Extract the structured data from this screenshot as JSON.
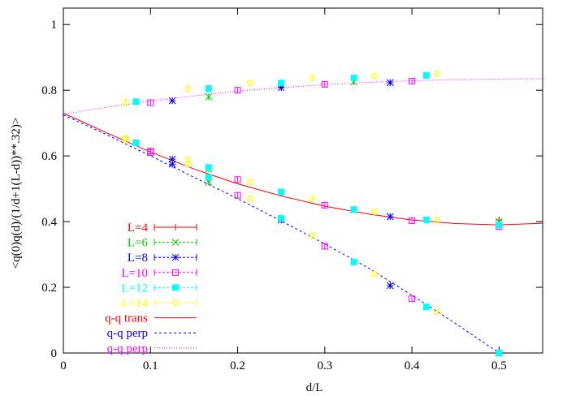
{
  "chart_data": {
    "type": "scatter",
    "xlabel": "d/L",
    "ylabel": "<q(0)q(d)/(1/d+1(L-d))**.32)>",
    "xlim": [
      0,
      0.55
    ],
    "ylim": [
      0,
      1.05
    ],
    "x_ticks": [
      "0",
      "0.1",
      "0.2",
      "0.3",
      "0.4",
      "0.5"
    ],
    "y_ticks": [
      "0",
      "0.2",
      "0.4",
      "0.6",
      "0.8",
      "1"
    ],
    "x_tick_values": [
      0,
      0.1,
      0.2,
      0.3,
      0.4,
      0.5
    ],
    "y_tick_values": [
      0,
      0.2,
      0.4,
      0.6,
      0.8,
      1.0
    ],
    "grid": false,
    "legend_position": "bottom-left",
    "series": [
      {
        "name": "L=4",
        "color": "#ff0000",
        "marker": "plus",
        "x": [
          0.25,
          0.25,
          0.5,
          0.5
        ],
        "y": [
          0.81,
          0.405,
          0.405,
          0.0
        ]
      },
      {
        "name": "L=6",
        "color": "#00cc00",
        "marker": "cross",
        "x": [
          0.1667,
          0.1667,
          0.3333,
          0.3333,
          0.1667,
          0.5,
          0.5
        ],
        "y": [
          0.78,
          0.52,
          0.825,
          0.435,
          0.56,
          0.4,
          0.0
        ]
      },
      {
        "name": "L=8",
        "color": "#0000ff",
        "marker": "star",
        "x": [
          0.125,
          0.25,
          0.375,
          0.125,
          0.25,
          0.375,
          0.125,
          0.25,
          0.375,
          0.5,
          0.5
        ],
        "y": [
          0.768,
          0.808,
          0.823,
          0.59,
          0.49,
          0.415,
          0.575,
          0.405,
          0.205,
          0.39,
          0.0
        ]
      },
      {
        "name": "L=10",
        "color": "#ff00ff",
        "marker": "square",
        "x": [
          0.1,
          0.2,
          0.3,
          0.4,
          0.1,
          0.2,
          0.3,
          0.4,
          0.1,
          0.2,
          0.3,
          0.4,
          0.5,
          0.5
        ],
        "y": [
          0.762,
          0.8,
          0.818,
          0.828,
          0.615,
          0.528,
          0.45,
          0.403,
          0.61,
          0.48,
          0.325,
          0.165,
          0.385,
          0.0
        ]
      },
      {
        "name": "L=12",
        "color": "#00ffff",
        "marker": "filled-square",
        "x": [
          0.0833,
          0.1667,
          0.25,
          0.3333,
          0.4167,
          0.0833,
          0.1667,
          0.25,
          0.3333,
          0.4167,
          0.0833,
          0.1667,
          0.25,
          0.3333,
          0.4167,
          0.5,
          0.5
        ],
        "y": [
          0.765,
          0.805,
          0.822,
          0.838,
          0.845,
          0.64,
          0.565,
          0.49,
          0.437,
          0.405,
          0.64,
          0.535,
          0.41,
          0.277,
          0.14,
          0.39,
          0.0
        ]
      },
      {
        "name": "L=14",
        "color": "#ffff00",
        "marker": "circle",
        "x": [
          0.0714,
          0.1429,
          0.2143,
          0.2857,
          0.3571,
          0.4286,
          0.0714,
          0.1429,
          0.2143,
          0.2857,
          0.3571,
          0.4286,
          0.0714,
          0.1429,
          0.2143,
          0.2857,
          0.3571,
          0.4286
        ],
        "y": [
          0.763,
          0.805,
          0.823,
          0.837,
          0.843,
          0.85,
          0.655,
          0.59,
          0.52,
          0.47,
          0.43,
          0.405,
          0.65,
          0.575,
          0.47,
          0.357,
          0.24,
          0.125
        ]
      },
      {
        "name": "q-q trans",
        "color": "#ff0000",
        "line": "solid",
        "x": [
          0,
          0.05,
          0.1,
          0.15,
          0.2,
          0.25,
          0.3,
          0.35,
          0.4,
          0.45,
          0.5,
          0.55
        ],
        "y": [
          0.73,
          0.67,
          0.612,
          0.56,
          0.515,
          0.478,
          0.447,
          0.423,
          0.405,
          0.394,
          0.39,
          0.395
        ]
      },
      {
        "name": "q-q perp",
        "color": "#0000ff",
        "line": "dashed",
        "x": [
          0,
          0.05,
          0.1,
          0.15,
          0.2,
          0.25,
          0.3,
          0.35,
          0.4,
          0.45,
          0.5
        ],
        "y": [
          0.725,
          0.664,
          0.6,
          0.535,
          0.47,
          0.402,
          0.332,
          0.259,
          0.176,
          0.09,
          0.0
        ]
      },
      {
        "name": "q-q perp",
        "color": "#ff00ff",
        "line": "dotted",
        "x": [
          0,
          0.05,
          0.1,
          0.15,
          0.2,
          0.25,
          0.3,
          0.35,
          0.4,
          0.45,
          0.5,
          0.55
        ],
        "y": [
          0.727,
          0.748,
          0.767,
          0.783,
          0.797,
          0.808,
          0.817,
          0.824,
          0.829,
          0.832,
          0.834,
          0.835
        ]
      }
    ]
  }
}
